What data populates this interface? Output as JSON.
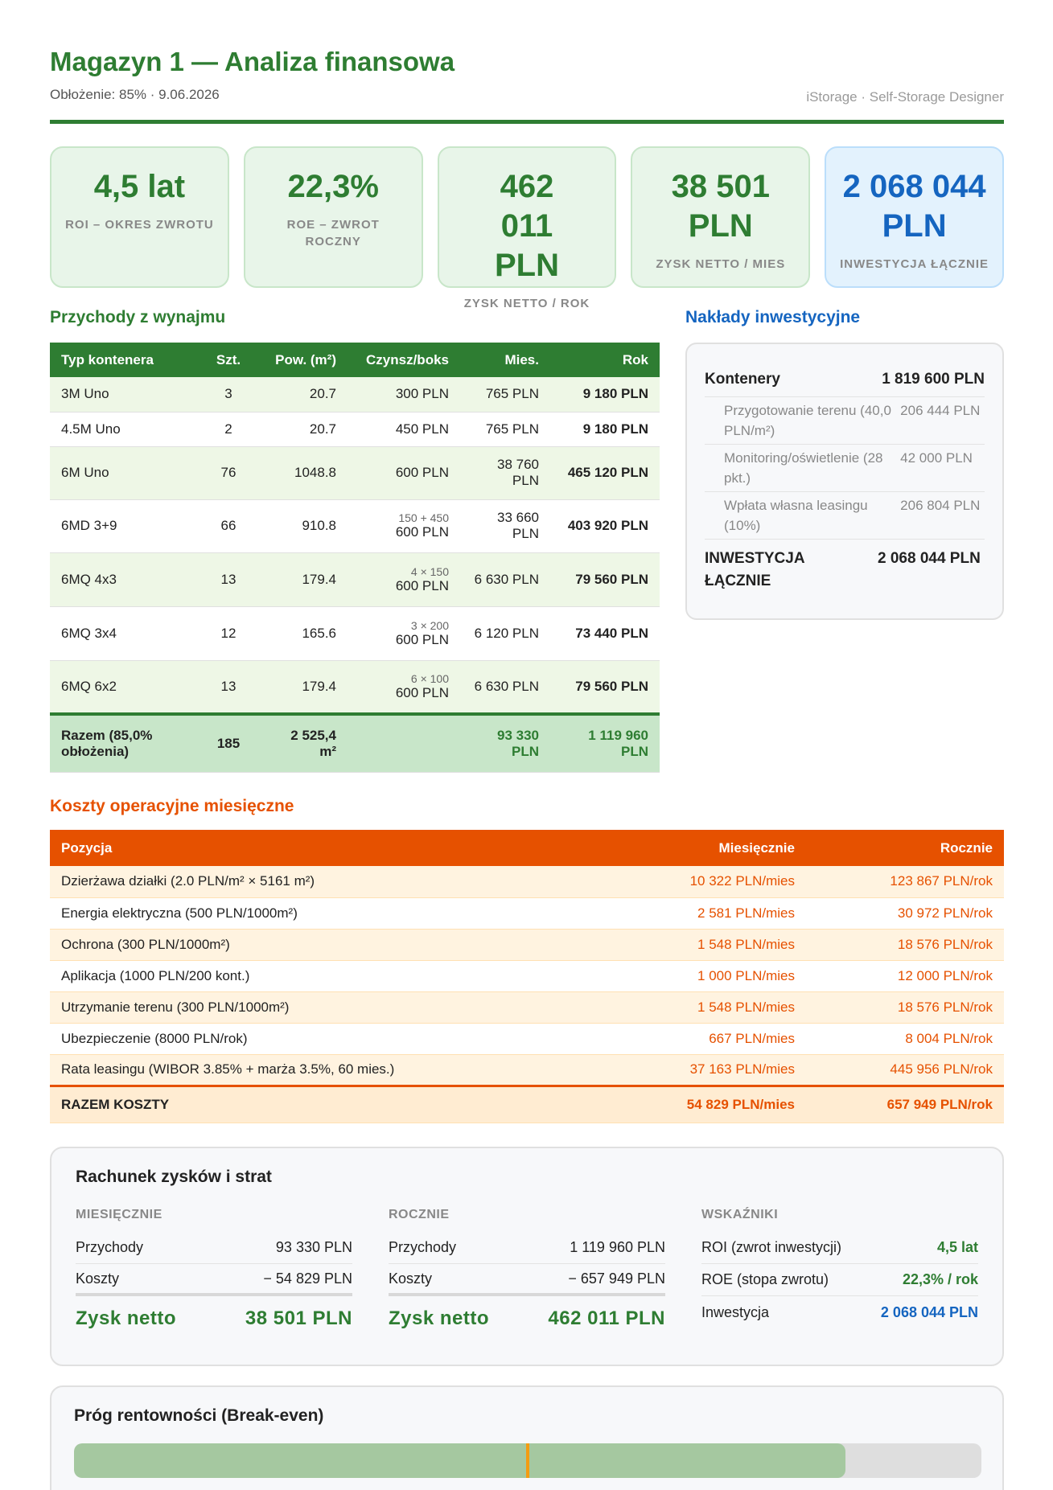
{
  "header": {
    "title": "Magazyn 1 — Analiza finansowa",
    "subtitle": "Obłożenie: 85% · 9.06.2026",
    "brand": "iStorage · Self-Storage Designer"
  },
  "kpis": [
    {
      "value": "4,5 lat",
      "label": "ROI – OKRES ZWROTU"
    },
    {
      "value": "22,3%",
      "label": "ROE – ZWROT ROCZNY"
    },
    {
      "value": "462 011 PLN",
      "label": "ZYSK NETTO / ROK"
    },
    {
      "value": "38 501 PLN",
      "label": "ZYSK NETTO / MIES"
    },
    {
      "value": "2 068 044 PLN",
      "label": "INWESTYCJA ŁĄCZNIE"
    }
  ],
  "revenue": {
    "title": "Przychody z wynajmu",
    "headers": [
      "Typ kontenera",
      "Szt.",
      "Pow. (m²)",
      "Czynsz/boks",
      "Mies.",
      "Rok"
    ],
    "rows": [
      {
        "type": "3M Uno",
        "qty": "3",
        "area": "20.7",
        "rent_note": "",
        "rent": "300 PLN",
        "month": "765 PLN",
        "year": "9 180 PLN"
      },
      {
        "type": "4.5M Uno",
        "qty": "2",
        "area": "20.7",
        "rent_note": "",
        "rent": "450 PLN",
        "month": "765 PLN",
        "year": "9 180 PLN"
      },
      {
        "type": "6M Uno",
        "qty": "76",
        "area": "1048.8",
        "rent_note": "",
        "rent": "600 PLN",
        "month": "38 760 PLN",
        "year": "465 120 PLN"
      },
      {
        "type": "6MD 3+9",
        "qty": "66",
        "area": "910.8",
        "rent_note": "150 + 450",
        "rent": "600 PLN",
        "month": "33 660 PLN",
        "year": "403 920 PLN"
      },
      {
        "type": "6MQ 4x3",
        "qty": "13",
        "area": "179.4",
        "rent_note": "4 × 150",
        "rent": "600 PLN",
        "month": "6 630 PLN",
        "year": "79 560 PLN"
      },
      {
        "type": "6MQ 3x4",
        "qty": "12",
        "area": "165.6",
        "rent_note": "3 × 200",
        "rent": "600 PLN",
        "month": "6 120 PLN",
        "year": "73 440 PLN"
      },
      {
        "type": "6MQ 6x2",
        "qty": "13",
        "area": "179.4",
        "rent_note": "6 × 100",
        "rent": "600 PLN",
        "month": "6 630 PLN",
        "year": "79 560 PLN"
      }
    ],
    "total": {
      "label": "Razem (85,0% obłożenia)",
      "qty": "185",
      "area": "2 525,4 m²",
      "month": "93 330 PLN",
      "year": "1 119 960 PLN"
    }
  },
  "investment": {
    "title": "Nakłady inwestycyjne",
    "main_label": "Kontenery",
    "main_value": "1 819 600 PLN",
    "items": [
      {
        "label": "Przygotowanie terenu (40,0 PLN/m²)",
        "value": "206 444 PLN"
      },
      {
        "label": "Monitoring/oświetlenie (28 pkt.)",
        "value": "42 000 PLN"
      },
      {
        "label": "Wpłata własna leasingu (10%)",
        "value": "206 804 PLN"
      }
    ],
    "total_label": "INWESTYCJA ŁĄCZNIE",
    "total_value": "2 068 044 PLN"
  },
  "costs": {
    "title": "Koszty operacyjne miesięczne",
    "headers": [
      "Pozycja",
      "Miesięcznie",
      "Rocznie"
    ],
    "rows": [
      {
        "item": "Dzierżawa działki (2.0 PLN/m² × 5161 m²)",
        "month": "10 322 PLN/mies",
        "year": "123 867 PLN/rok"
      },
      {
        "item": "Energia elektryczna (500 PLN/1000m²)",
        "month": "2 581 PLN/mies",
        "year": "30 972 PLN/rok"
      },
      {
        "item": "Ochrona (300 PLN/1000m²)",
        "month": "1 548 PLN/mies",
        "year": "18 576 PLN/rok"
      },
      {
        "item": "Aplikacja (1000 PLN/200 kont.)",
        "month": "1 000 PLN/mies",
        "year": "12 000 PLN/rok"
      },
      {
        "item": "Utrzymanie terenu (300 PLN/1000m²)",
        "month": "1 548 PLN/mies",
        "year": "18 576 PLN/rok"
      },
      {
        "item": "Ubezpieczenie (8000 PLN/rok)",
        "month": "667 PLN/mies",
        "year": "8 004 PLN/rok"
      },
      {
        "item": "Rata leasingu (WIBOR 3.85% + marża 3.5%, 60 mies.)",
        "month": "37 163 PLN/mies",
        "year": "445 956 PLN/rok"
      }
    ],
    "total": {
      "label": "RAZEM KOSZTY",
      "month": "54 829 PLN/mies",
      "year": "657 949 PLN/rok"
    }
  },
  "pl": {
    "title": "Rachunek zysków i strat",
    "monthly": {
      "title": "MIESIĘCZNIE",
      "rev_label": "Przychody",
      "rev": "93 330 PLN",
      "cost_label": "Koszty",
      "cost": "− 54 829 PLN",
      "net_label": "Zysk netto",
      "net": "38 501 PLN"
    },
    "yearly": {
      "title": "ROCZNIE",
      "rev_label": "Przychody",
      "rev": "1 119 960 PLN",
      "cost_label": "Koszty",
      "cost": "− 657 949 PLN",
      "net_label": "Zysk netto",
      "net": "462 011 PLN"
    },
    "indicators": {
      "title": "WSKAŹNIKI",
      "roi_label": "ROI (zwrot inwestycji)",
      "roi": "4,5 lat",
      "roe_label": "ROE (stopa zwrotu)",
      "roe": "22,3% / rok",
      "inv_label": "Inwestycja",
      "inv": "2 068 044 PLN"
    }
  },
  "breakeven": {
    "title": "Próg rentowności (Break-even)",
    "occupancy": 0.85,
    "breakeven_point": 0.5
  },
  "colors": {
    "green": "#2e7d32",
    "blue": "#1565c0",
    "orange": "#e65100",
    "marker": "#f39c12"
  }
}
